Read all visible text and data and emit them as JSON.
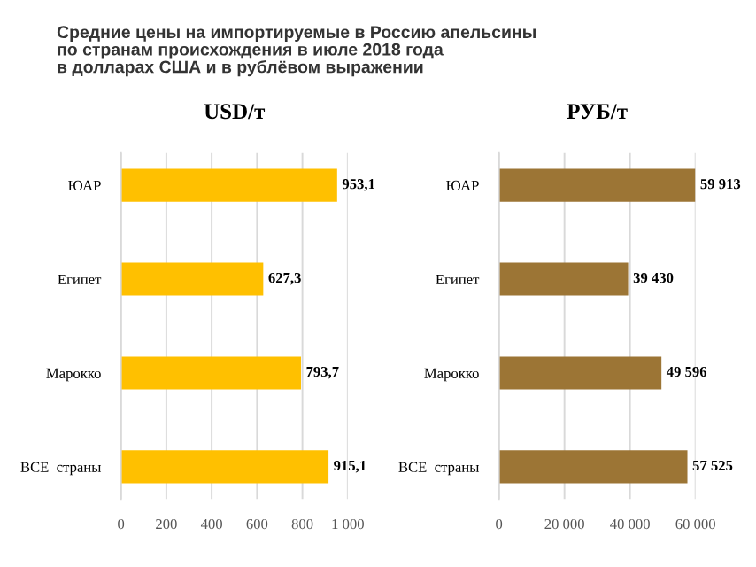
{
  "chart_data": [
    {
      "type": "bar",
      "orientation": "horizontal",
      "title": "USD/т",
      "annotations": [
        "Средние цены на импортируемые в Россию апельсины\nпо странам происхождения в июле 2018 года\nв долларах США и в рублёвом выражении"
      ],
      "categories": [
        "ЮАР",
        "Египет",
        "Марокко",
        "ВСЕ  страны"
      ],
      "series": [
        {
          "color": "#ffc000",
          "values": [
            953.1,
            627.3,
            793.7,
            915.1
          ],
          "value_labels": [
            "953,1",
            "627,3",
            "793,7",
            "915,1"
          ]
        }
      ],
      "xlim": [
        0,
        1000
      ],
      "xticks": [
        0,
        200,
        400,
        600,
        800,
        {
          "value": 1000,
          "label": "1 000"
        }
      ],
      "grid": "x",
      "legend": false
    },
    {
      "type": "bar",
      "orientation": "horizontal",
      "title": "РУБ/т",
      "categories": [
        "ЮАР",
        "Египет",
        "Марокко",
        "ВСЕ  страны"
      ],
      "series": [
        {
          "color": "#9c7535",
          "values": [
            59913,
            39430,
            49596,
            57525
          ],
          "value_labels": [
            "59 913",
            "39 430",
            "49 596",
            "57 525"
          ]
        }
      ],
      "xlim": [
        0,
        60000
      ],
      "xticks": [
        0,
        {
          "value": 20000,
          "label": "20 000"
        },
        {
          "value": 40000,
          "label": "40 000"
        },
        {
          "value": 60000,
          "label": "60 000"
        }
      ],
      "grid": "x",
      "legend": false
    }
  ]
}
